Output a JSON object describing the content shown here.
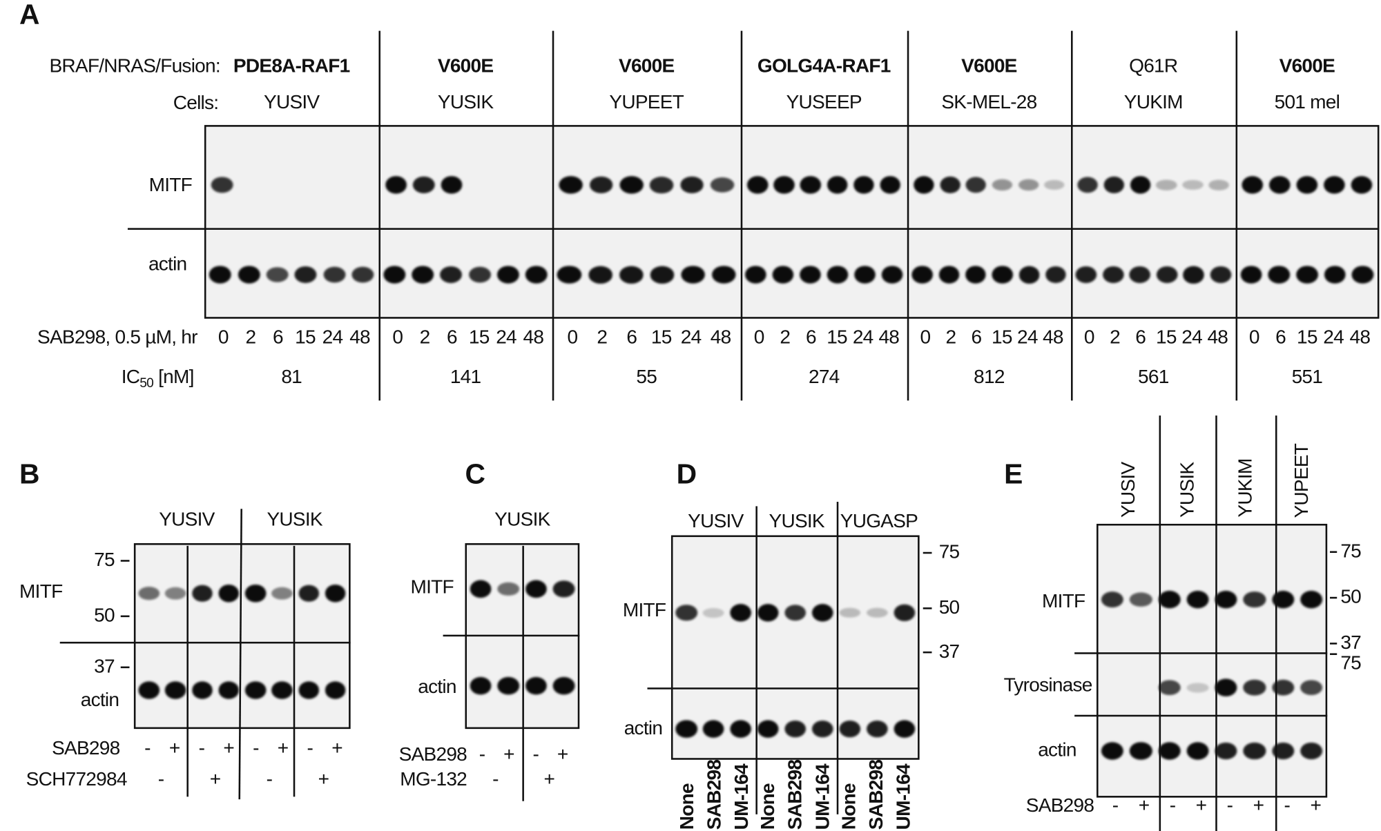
{
  "panels": {
    "A": {
      "label": "A",
      "row_labels": {
        "mutation": "BRAF/NRAS/Fusion:",
        "cells": "Cells:",
        "time": "SAB298, 0.5 µM, hr",
        "ic50": "IC",
        "ic50_sub": "50",
        "ic50_unit": " [nM]"
      },
      "blot_labels": {
        "mitf": "MITF",
        "actin": "actin"
      },
      "groups": [
        {
          "mutation": "PDE8A-RAF1",
          "mutation_bold": true,
          "cell": "YUSIV",
          "times": [
            "0",
            "2",
            "6",
            "15",
            "24",
            "48"
          ],
          "ic50": "81",
          "mitf": [
            0.8,
            0,
            0,
            0,
            0,
            0
          ],
          "actin": [
            1,
            1,
            0.7,
            0.9,
            0.8,
            0.8
          ]
        },
        {
          "mutation": "V600E",
          "mutation_bold": true,
          "cell": "YUSIK",
          "times": [
            "0",
            "2",
            "6",
            "15",
            "24",
            "48"
          ],
          "ic50": "141",
          "mitf": [
            1,
            0.9,
            1,
            0,
            0,
            0
          ],
          "actin": [
            1,
            1,
            0.9,
            0.8,
            1,
            1
          ]
        },
        {
          "mutation": "V600E",
          "mutation_bold": true,
          "cell": "YUPEET",
          "times": [
            "0",
            "2",
            "6",
            "15",
            "24",
            "48"
          ],
          "ic50": "55",
          "mitf": [
            1,
            0.9,
            1,
            0.85,
            0.9,
            0.7
          ],
          "actin": [
            1,
            0.95,
            0.95,
            0.95,
            1,
            1
          ]
        },
        {
          "mutation": "GOLG4A-RAF1",
          "mutation_bold": true,
          "cell": "YUSEEP",
          "times": [
            "0",
            "2",
            "6",
            "15",
            "24",
            "48"
          ],
          "ic50": "274",
          "mitf": [
            1,
            1,
            1,
            1,
            1,
            1
          ],
          "actin": [
            1,
            1,
            1,
            1,
            1,
            1
          ]
        },
        {
          "mutation": "V600E",
          "mutation_bold": true,
          "cell": "SK-MEL-28",
          "times": [
            "0",
            "2",
            "6",
            "15",
            "24",
            "48"
          ],
          "ic50": "812",
          "mitf": [
            1,
            0.9,
            0.8,
            0.3,
            0.3,
            0.1
          ],
          "actin": [
            1,
            1,
            1,
            1,
            0.95,
            0.9
          ]
        },
        {
          "mutation": "Q61R",
          "mutation_bold": false,
          "cell": "YUKIM",
          "times": [
            "0",
            "2",
            "6",
            "15",
            "24",
            "48"
          ],
          "ic50": "561",
          "mitf": [
            0.8,
            0.9,
            1,
            0.15,
            0.1,
            0.15
          ],
          "actin": [
            0.9,
            0.9,
            0.9,
            0.9,
            0.95,
            0.9
          ]
        },
        {
          "mutation": "V600E",
          "mutation_bold": true,
          "cell": "501 mel",
          "times": [
            "0",
            "6",
            "15",
            "24",
            "48"
          ],
          "ic50": "551",
          "mitf": [
            1,
            1,
            1,
            1,
            1
          ],
          "actin": [
            1,
            1,
            1,
            1,
            1
          ]
        }
      ]
    },
    "B": {
      "label": "B",
      "cells": [
        "YUSIV",
        "YUSIK"
      ],
      "blot_labels": {
        "mitf": "MITF",
        "actin": "actin"
      },
      "mw_markers": [
        "75",
        "50",
        "37"
      ],
      "treatments": [
        {
          "name": "SAB298",
          "values": [
            "-",
            "+",
            "-",
            "+",
            "-",
            "+",
            "-",
            "+"
          ]
        },
        {
          "name": "SCH772984",
          "values": [
            "-",
            "+",
            "-",
            "+"
          ]
        }
      ],
      "mitf": [
        0.5,
        0.4,
        0.9,
        1,
        1,
        0.4,
        0.9,
        1
      ],
      "actin": [
        1,
        1,
        1,
        1,
        1,
        1,
        1,
        1
      ]
    },
    "C": {
      "label": "C",
      "cells": [
        "YUSIK"
      ],
      "blot_labels": {
        "mitf": "MITF",
        "actin": "actin"
      },
      "treatments": [
        {
          "name": "SAB298",
          "values": [
            "-",
            "+",
            "-",
            "+"
          ]
        },
        {
          "name": "MG-132",
          "values": [
            "-",
            "+"
          ]
        }
      ],
      "mitf": [
        1,
        0.5,
        1,
        0.9
      ],
      "actin": [
        1,
        1,
        1,
        1
      ]
    },
    "D": {
      "label": "D",
      "cells": [
        "YUSIV",
        "YUSIK",
        "YUGASP"
      ],
      "blot_labels": {
        "mitf": "MITF",
        "actin": "actin"
      },
      "mw_markers": [
        "75",
        "50",
        "37"
      ],
      "lanes": [
        "None",
        "SAB298",
        "UM-164",
        "None",
        "SAB298",
        "UM-164",
        "None",
        "SAB298",
        "UM-164"
      ],
      "mitf": [
        0.8,
        0.05,
        1,
        1,
        0.8,
        1,
        0.1,
        0.1,
        0.9
      ],
      "actin": [
        1,
        1,
        1,
        1,
        0.9,
        0.9,
        0.9,
        0.9,
        1
      ]
    },
    "E": {
      "label": "E",
      "cells": [
        "YUSIV",
        "YUSIK",
        "YUKIM",
        "YUPEET"
      ],
      "blot_labels": {
        "mitf": "MITF",
        "tyrosinase": "Tyrosinase",
        "actin": "actin"
      },
      "mw_markers_mitf": [
        "75",
        "50",
        "37"
      ],
      "mw_markers_tyrosinase": [
        "75"
      ],
      "treatments": [
        {
          "name": "SAB298",
          "values": [
            "-",
            "+",
            "-",
            "+",
            "-",
            "+",
            "-",
            "+"
          ]
        }
      ],
      "mitf": [
        0.8,
        0.6,
        1,
        1,
        1,
        0.8,
        1,
        1
      ],
      "tyrosinase": [
        0,
        0,
        0.7,
        0.05,
        1,
        0.8,
        0.8,
        0.7
      ],
      "actin": [
        1,
        1,
        1,
        1,
        0.9,
        0.9,
        0.9,
        0.9
      ]
    }
  }
}
